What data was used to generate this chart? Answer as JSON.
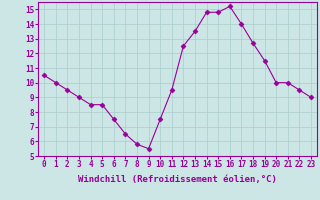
{
  "x": [
    0,
    1,
    2,
    3,
    4,
    5,
    6,
    7,
    8,
    9,
    10,
    11,
    12,
    13,
    14,
    15,
    16,
    17,
    18,
    19,
    20,
    21,
    22,
    23
  ],
  "y": [
    10.5,
    10.0,
    9.5,
    9.0,
    8.5,
    8.5,
    7.5,
    6.5,
    5.8,
    5.5,
    7.5,
    9.5,
    12.5,
    13.5,
    14.8,
    14.8,
    15.2,
    14.0,
    12.7,
    11.5,
    10.0,
    10.0,
    9.5,
    9.0
  ],
  "line_color": "#990099",
  "marker": "D",
  "marker_size": 2.5,
  "xlim": [
    -0.5,
    23.5
  ],
  "ylim": [
    5,
    15.5
  ],
  "yticks": [
    5,
    6,
    7,
    8,
    9,
    10,
    11,
    12,
    13,
    14,
    15
  ],
  "xtick_labels": [
    "0",
    "1",
    "2",
    "3",
    "4",
    "5",
    "6",
    "7",
    "8",
    "9",
    "10",
    "11",
    "12",
    "13",
    "14",
    "15",
    "16",
    "17",
    "18",
    "19",
    "20",
    "21",
    "22",
    "23"
  ],
  "xlabel": "Windchill (Refroidissement éolien,°C)",
  "background_color": "#cce5e5",
  "grid_color": "#aacccc",
  "tick_fontsize": 5.5,
  "label_fontsize": 6.5
}
